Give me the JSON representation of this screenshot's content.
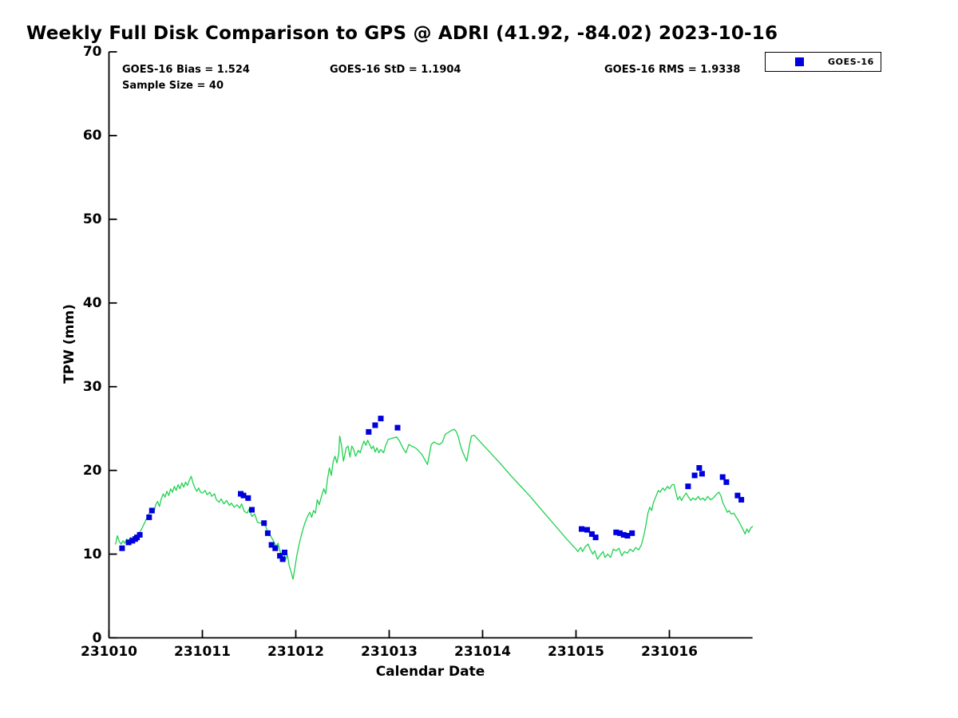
{
  "title": "Weekly Full Disk Comparison to GPS @ ADRI (41.92, -84.02) 2023-10-16",
  "stats": {
    "bias_text": "GOES-16 Bias = 1.524",
    "std_text": "GOES-16 StD = 1.1904",
    "rms_text": "GOES-16 RMS = 1.9338",
    "sample_text": "Sample Size = 40"
  },
  "legend": {
    "entries": [
      {
        "label": "GOES-16",
        "marker": "filled-square",
        "color": "#0000dd"
      }
    ]
  },
  "chart_data": {
    "type": "line",
    "title": "Weekly Full Disk Comparison to GPS @ ADRI (41.92, -84.02) 2023-10-16",
    "xlabel": "Calendar Date",
    "ylabel": "TPW (mm)",
    "x_base_date_code": 231010,
    "xlim_day_offset": [
      0,
      6.89
    ],
    "ylim": [
      0,
      70
    ],
    "yticks": [
      0,
      10,
      20,
      30,
      40,
      50,
      60,
      70
    ],
    "xtick_labels": [
      "231010",
      "231011",
      "231012",
      "231013",
      "231014",
      "231015",
      "231016"
    ],
    "xtick_day_offsets": [
      0,
      1,
      2,
      3,
      4,
      5,
      6
    ],
    "grid": false,
    "legend_position": "top-right-outside",
    "annotations": {
      "bias": 1.524,
      "std": 1.1904,
      "rms": 1.9338,
      "sample_size": 40
    },
    "series": [
      {
        "name": "GPS",
        "type": "line",
        "color": "#1fd24f",
        "points": [
          [
            0.07,
            11.2
          ],
          [
            0.09,
            12.2
          ],
          [
            0.11,
            11.5
          ],
          [
            0.13,
            11.2
          ],
          [
            0.15,
            11.6
          ],
          [
            0.17,
            11.3
          ],
          [
            0.19,
            11.8
          ],
          [
            0.21,
            11.6
          ],
          [
            0.23,
            12.0
          ],
          [
            0.25,
            11.8
          ],
          [
            0.27,
            12.1
          ],
          [
            0.29,
            11.9
          ],
          [
            0.31,
            12.3
          ],
          [
            0.33,
            12.6
          ],
          [
            0.35,
            13.0
          ],
          [
            0.38,
            13.7
          ],
          [
            0.4,
            14.2
          ],
          [
            0.42,
            14.6
          ],
          [
            0.44,
            15.1
          ],
          [
            0.46,
            15.5
          ],
          [
            0.48,
            15.0
          ],
          [
            0.5,
            15.9
          ],
          [
            0.52,
            16.3
          ],
          [
            0.54,
            15.7
          ],
          [
            0.56,
            16.6
          ],
          [
            0.58,
            17.2
          ],
          [
            0.6,
            16.8
          ],
          [
            0.62,
            17.5
          ],
          [
            0.64,
            17.0
          ],
          [
            0.66,
            17.8
          ],
          [
            0.68,
            17.4
          ],
          [
            0.7,
            18.1
          ],
          [
            0.72,
            17.6
          ],
          [
            0.74,
            18.3
          ],
          [
            0.76,
            17.8
          ],
          [
            0.78,
            18.5
          ],
          [
            0.8,
            18.0
          ],
          [
            0.82,
            18.6
          ],
          [
            0.84,
            18.2
          ],
          [
            0.86,
            18.8
          ],
          [
            0.88,
            19.3
          ],
          [
            0.9,
            18.5
          ],
          [
            0.92,
            17.9
          ],
          [
            0.94,
            17.5
          ],
          [
            0.96,
            17.9
          ],
          [
            0.98,
            17.4
          ],
          [
            1.0,
            17.3
          ],
          [
            1.03,
            17.6
          ],
          [
            1.05,
            17.1
          ],
          [
            1.08,
            17.4
          ],
          [
            1.1,
            16.9
          ],
          [
            1.13,
            17.2
          ],
          [
            1.15,
            16.5
          ],
          [
            1.18,
            16.2
          ],
          [
            1.2,
            16.6
          ],
          [
            1.23,
            16.0
          ],
          [
            1.26,
            16.4
          ],
          [
            1.29,
            15.8
          ],
          [
            1.31,
            16.1
          ],
          [
            1.34,
            15.6
          ],
          [
            1.37,
            15.9
          ],
          [
            1.4,
            15.5
          ],
          [
            1.42,
            16.0
          ],
          [
            1.45,
            15.1
          ],
          [
            1.48,
            14.9
          ],
          [
            1.5,
            15.4
          ],
          [
            1.53,
            14.5
          ],
          [
            1.56,
            14.8
          ],
          [
            1.59,
            13.8
          ],
          [
            1.62,
            13.7
          ],
          [
            1.65,
            13.9
          ],
          [
            1.67,
            13.5
          ],
          [
            1.7,
            12.7
          ],
          [
            1.73,
            12.2
          ],
          [
            1.76,
            11.6
          ],
          [
            1.79,
            10.9
          ],
          [
            1.81,
            11.3
          ],
          [
            1.83,
            10.4
          ],
          [
            1.85,
            9.8
          ],
          [
            1.87,
            10.3
          ],
          [
            1.89,
            9.3
          ],
          [
            1.91,
            9.9
          ],
          [
            1.93,
            8.6
          ],
          [
            1.95,
            7.9
          ],
          [
            1.97,
            7.0
          ],
          [
            1.99,
            8.3
          ],
          [
            2.01,
            9.8
          ],
          [
            2.04,
            11.4
          ],
          [
            2.07,
            12.7
          ],
          [
            2.1,
            13.8
          ],
          [
            2.13,
            14.6
          ],
          [
            2.15,
            15.0
          ],
          [
            2.17,
            14.4
          ],
          [
            2.19,
            15.2
          ],
          [
            2.21,
            14.9
          ],
          [
            2.23,
            16.5
          ],
          [
            2.25,
            15.9
          ],
          [
            2.28,
            17.1
          ],
          [
            2.3,
            17.8
          ],
          [
            2.32,
            17.2
          ],
          [
            2.34,
            19.0
          ],
          [
            2.36,
            20.3
          ],
          [
            2.38,
            19.4
          ],
          [
            2.4,
            21.0
          ],
          [
            2.42,
            21.7
          ],
          [
            2.44,
            20.9
          ],
          [
            2.46,
            22.0
          ],
          [
            2.47,
            24.1
          ],
          [
            2.49,
            23.0
          ],
          [
            2.51,
            21.1
          ],
          [
            2.54,
            22.7
          ],
          [
            2.56,
            22.9
          ],
          [
            2.58,
            21.6
          ],
          [
            2.6,
            22.9
          ],
          [
            2.62,
            22.5
          ],
          [
            2.64,
            21.7
          ],
          [
            2.67,
            22.4
          ],
          [
            2.69,
            22.1
          ],
          [
            2.71,
            22.9
          ],
          [
            2.73,
            23.5
          ],
          [
            2.75,
            23.0
          ],
          [
            2.77,
            23.6
          ],
          [
            2.79,
            23.1
          ],
          [
            2.81,
            22.6
          ],
          [
            2.83,
            22.9
          ],
          [
            2.85,
            22.2
          ],
          [
            2.87,
            22.7
          ],
          [
            2.89,
            22.1
          ],
          [
            2.91,
            22.5
          ],
          [
            2.94,
            22.1
          ],
          [
            2.96,
            22.9
          ],
          [
            2.99,
            23.7
          ],
          [
            3.08,
            24.0
          ],
          [
            3.11,
            23.5
          ],
          [
            3.15,
            22.6
          ],
          [
            3.18,
            22.1
          ],
          [
            3.21,
            23.1
          ],
          [
            3.24,
            22.9
          ],
          [
            3.28,
            22.7
          ],
          [
            3.31,
            22.4
          ],
          [
            3.35,
            21.9
          ],
          [
            3.38,
            21.3
          ],
          [
            3.41,
            20.7
          ],
          [
            3.45,
            23.1
          ],
          [
            3.48,
            23.4
          ],
          [
            3.51,
            23.2
          ],
          [
            3.54,
            23.1
          ],
          [
            3.57,
            23.4
          ],
          [
            3.6,
            24.3
          ],
          [
            3.64,
            24.6
          ],
          [
            3.67,
            24.8
          ],
          [
            3.7,
            24.9
          ],
          [
            3.72,
            24.6
          ],
          [
            3.74,
            24.0
          ],
          [
            3.76,
            23.1
          ],
          [
            3.78,
            22.4
          ],
          [
            3.81,
            21.6
          ],
          [
            3.83,
            21.1
          ],
          [
            3.86,
            23.0
          ],
          [
            3.88,
            24.1
          ],
          [
            3.91,
            24.2
          ],
          [
            4.0,
            23.1
          ],
          [
            4.1,
            21.9
          ],
          [
            4.2,
            20.7
          ],
          [
            4.3,
            19.4
          ],
          [
            4.4,
            18.2
          ],
          [
            4.5,
            17.0
          ],
          [
            4.6,
            15.7
          ],
          [
            4.7,
            14.4
          ],
          [
            4.8,
            13.1
          ],
          [
            4.9,
            11.8
          ],
          [
            5.0,
            10.6
          ],
          [
            5.02,
            10.3
          ],
          [
            5.05,
            10.8
          ],
          [
            5.07,
            10.3
          ],
          [
            5.1,
            10.9
          ],
          [
            5.13,
            11.2
          ],
          [
            5.15,
            10.6
          ],
          [
            5.18,
            10.0
          ],
          [
            5.2,
            10.4
          ],
          [
            5.23,
            9.4
          ],
          [
            5.26,
            9.9
          ],
          [
            5.29,
            10.3
          ],
          [
            5.31,
            9.6
          ],
          [
            5.34,
            10.0
          ],
          [
            5.37,
            9.6
          ],
          [
            5.4,
            10.6
          ],
          [
            5.43,
            10.4
          ],
          [
            5.46,
            10.7
          ],
          [
            5.49,
            9.8
          ],
          [
            5.52,
            10.3
          ],
          [
            5.55,
            10.1
          ],
          [
            5.58,
            10.6
          ],
          [
            5.61,
            10.3
          ],
          [
            5.64,
            10.8
          ],
          [
            5.67,
            10.5
          ],
          [
            5.7,
            11.1
          ],
          [
            5.73,
            12.4
          ],
          [
            5.75,
            13.6
          ],
          [
            5.77,
            14.9
          ],
          [
            5.79,
            15.6
          ],
          [
            5.81,
            15.2
          ],
          [
            5.83,
            16.2
          ],
          [
            5.86,
            17.0
          ],
          [
            5.88,
            17.6
          ],
          [
            5.9,
            17.4
          ],
          [
            5.93,
            17.9
          ],
          [
            5.95,
            17.6
          ],
          [
            5.98,
            18.1
          ],
          [
            6.0,
            17.8
          ],
          [
            6.03,
            18.3
          ],
          [
            6.05,
            18.3
          ],
          [
            6.07,
            17.3
          ],
          [
            6.09,
            16.5
          ],
          [
            6.11,
            16.9
          ],
          [
            6.13,
            16.4
          ],
          [
            6.16,
            17.0
          ],
          [
            6.18,
            17.3
          ],
          [
            6.2,
            16.9
          ],
          [
            6.23,
            16.4
          ],
          [
            6.25,
            16.7
          ],
          [
            6.28,
            16.5
          ],
          [
            6.31,
            16.9
          ],
          [
            6.33,
            16.5
          ],
          [
            6.36,
            16.7
          ],
          [
            6.38,
            16.4
          ],
          [
            6.41,
            16.9
          ],
          [
            6.44,
            16.5
          ],
          [
            6.47,
            16.7
          ],
          [
            6.5,
            17.1
          ],
          [
            6.53,
            17.4
          ],
          [
            6.55,
            17.0
          ],
          [
            6.57,
            16.2
          ],
          [
            6.6,
            15.5
          ],
          [
            6.62,
            15.0
          ],
          [
            6.64,
            15.2
          ],
          [
            6.66,
            14.8
          ],
          [
            6.69,
            14.9
          ],
          [
            6.71,
            14.5
          ],
          [
            6.74,
            14.0
          ],
          [
            6.77,
            13.3
          ],
          [
            6.79,
            12.9
          ],
          [
            6.81,
            12.4
          ],
          [
            6.83,
            13.0
          ],
          [
            6.85,
            12.6
          ],
          [
            6.87,
            13.1
          ],
          [
            6.89,
            13.3
          ]
        ]
      },
      {
        "name": "GOES-16",
        "type": "scatter",
        "marker": "filled-square",
        "color": "#0000dd",
        "points": [
          [
            0.14,
            10.7
          ],
          [
            0.21,
            11.4
          ],
          [
            0.25,
            11.6
          ],
          [
            0.28,
            11.8
          ],
          [
            0.3,
            12.0
          ],
          [
            0.33,
            12.3
          ],
          [
            0.43,
            14.4
          ],
          [
            0.46,
            15.2
          ],
          [
            1.41,
            17.2
          ],
          [
            1.44,
            17.0
          ],
          [
            1.49,
            16.7
          ],
          [
            1.53,
            15.3
          ],
          [
            1.66,
            13.7
          ],
          [
            1.7,
            12.5
          ],
          [
            1.74,
            11.1
          ],
          [
            1.78,
            10.7
          ],
          [
            1.83,
            9.8
          ],
          [
            1.86,
            9.4
          ],
          [
            1.88,
            10.2
          ],
          [
            2.78,
            24.6
          ],
          [
            2.85,
            25.4
          ],
          [
            2.91,
            26.2
          ],
          [
            3.09,
            25.1
          ],
          [
            5.06,
            13.0
          ],
          [
            5.12,
            12.9
          ],
          [
            5.17,
            12.4
          ],
          [
            5.21,
            12.0
          ],
          [
            5.43,
            12.6
          ],
          [
            5.47,
            12.5
          ],
          [
            5.51,
            12.3
          ],
          [
            5.55,
            12.2
          ],
          [
            5.6,
            12.5
          ],
          [
            6.2,
            18.1
          ],
          [
            6.27,
            19.4
          ],
          [
            6.32,
            20.3
          ],
          [
            6.35,
            19.6
          ],
          [
            6.57,
            19.2
          ],
          [
            6.61,
            18.6
          ],
          [
            6.73,
            17.0
          ],
          [
            6.77,
            16.5
          ]
        ]
      }
    ]
  }
}
